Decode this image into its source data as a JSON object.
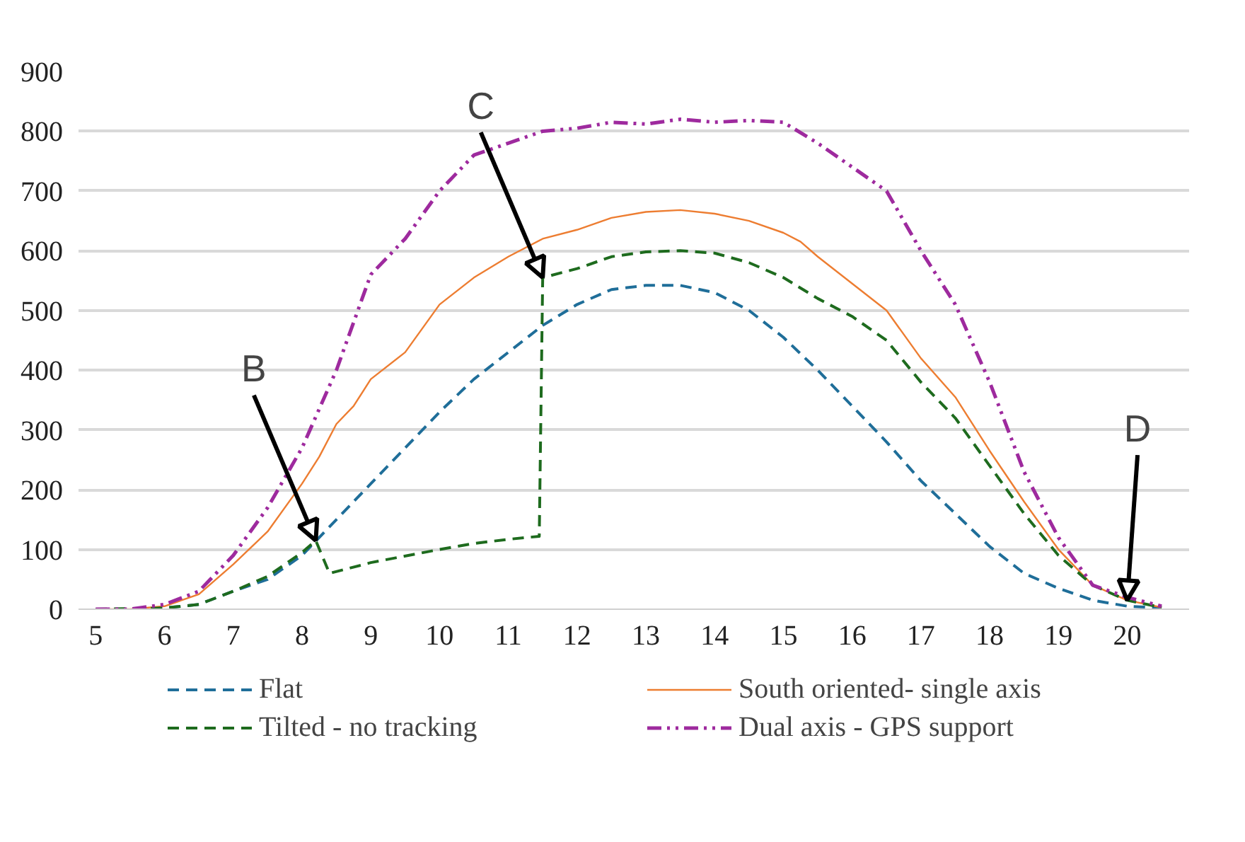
{
  "chart_data": {
    "type": "line",
    "xlim": [
      4.75,
      20.9
    ],
    "xticks": [
      5,
      6,
      7,
      8,
      9,
      10,
      11,
      12,
      13,
      14,
      15,
      16,
      17,
      18,
      19,
      20
    ],
    "ylim": [
      0,
      900
    ],
    "yticks": [
      0,
      100,
      200,
      300,
      400,
      500,
      600,
      700,
      800,
      900
    ],
    "grid": "y",
    "legend": "bottom",
    "series": [
      {
        "name": "Flat",
        "color": "#1f6e99",
        "line_style": "dashed",
        "x": [
          5,
          5.5,
          6,
          6.5,
          7,
          7.5,
          8,
          8.5,
          9,
          9.5,
          10,
          10.5,
          11,
          11.5,
          12,
          12.5,
          13,
          13.5,
          14,
          14.5,
          15,
          15.5,
          16,
          16.5,
          17,
          17.5,
          18,
          18.5,
          19,
          19.5,
          20,
          20.5
        ],
        "values": [
          0,
          0,
          2,
          8,
          30,
          50,
          90,
          150,
          210,
          270,
          330,
          385,
          430,
          475,
          510,
          535,
          542,
          542,
          530,
          500,
          455,
          400,
          340,
          280,
          215,
          160,
          105,
          60,
          35,
          15,
          5,
          2
        ]
      },
      {
        "name": "South oriented- single axis",
        "color": "#ed7d31",
        "line_style": "solid",
        "x": [
          5,
          5.5,
          6,
          6.5,
          7,
          7.5,
          8,
          8.25,
          8.5,
          8.75,
          9,
          9.5,
          10,
          10.5,
          11,
          11.5,
          12,
          12.5,
          13,
          13.5,
          14,
          14.5,
          15,
          15.25,
          15.5,
          16,
          16.5,
          17,
          17.5,
          18,
          18.5,
          19,
          19.5,
          20,
          20.5
        ],
        "values": [
          0,
          0,
          5,
          25,
          75,
          130,
          210,
          255,
          310,
          340,
          385,
          430,
          510,
          555,
          590,
          620,
          635,
          655,
          665,
          668,
          662,
          650,
          630,
          615,
          590,
          545,
          500,
          420,
          355,
          265,
          180,
          100,
          40,
          15,
          3
        ]
      },
      {
        "name": "Tilted - no tracking",
        "color": "#1e6b1e",
        "line_style": "dashed",
        "x": [
          5,
          6,
          6.5,
          7,
          7.5,
          8,
          8.2,
          8.4,
          9,
          10,
          10.5,
          11,
          11.45,
          11.5,
          12,
          12.5,
          13,
          13.5,
          14,
          14.5,
          15,
          15.5,
          16,
          16.5,
          17,
          17.5,
          18,
          18.5,
          19,
          19.5,
          20,
          20.5
        ],
        "values": [
          0,
          2,
          8,
          30,
          55,
          95,
          115,
          60,
          78,
          100,
          110,
          117,
          122,
          555,
          570,
          590,
          598,
          600,
          596,
          580,
          555,
          520,
          490,
          450,
          380,
          320,
          240,
          160,
          90,
          40,
          15,
          3
        ]
      },
      {
        "name": "Dual axis - GPS support",
        "color": "#9e2a9e",
        "line_style": "dashdot",
        "x": [
          5,
          5.5,
          6,
          6.5,
          7,
          7.5,
          8,
          8.5,
          9,
          9.5,
          10,
          10.5,
          11,
          11.5,
          12,
          12.5,
          13,
          13.5,
          14,
          14.5,
          15,
          15.5,
          16,
          16.5,
          17,
          17.5,
          18,
          18.5,
          19,
          19.5,
          20,
          20.5
        ],
        "values": [
          0,
          0,
          8,
          30,
          90,
          170,
          270,
          400,
          560,
          620,
          700,
          760,
          780,
          800,
          805,
          815,
          812,
          820,
          815,
          818,
          815,
          780,
          740,
          700,
          600,
          510,
          380,
          230,
          120,
          40,
          20,
          5
        ]
      }
    ],
    "annotations": [
      {
        "text": "B",
        "x": 8.2,
        "y": 115
      },
      {
        "text": "C",
        "x": 11.5,
        "y": 555
      },
      {
        "text": "D",
        "x": 20,
        "y": 15
      }
    ]
  }
}
